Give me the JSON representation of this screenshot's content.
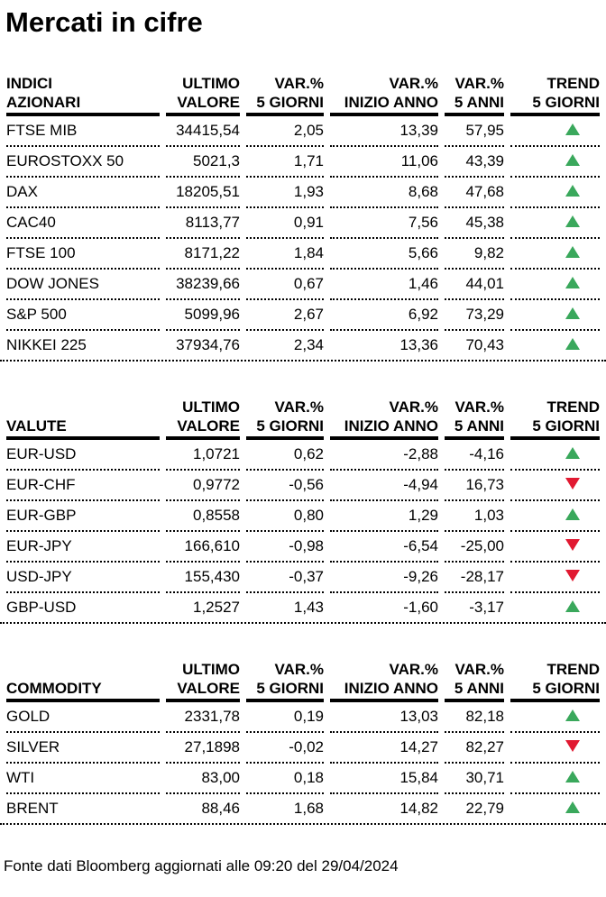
{
  "title": "Mercati in cifre",
  "footer": "Fonte dati Bloomberg aggiornati alle 09:20 del 29/04/2024",
  "colors": {
    "trend_up": "#3aa85c",
    "trend_down": "#e11931"
  },
  "columns": {
    "ultimo": [
      "ULTIMO",
      "VALORE"
    ],
    "var_5_giorni": [
      "VAR.%",
      "5 GIORNI"
    ],
    "var_inizio_anno": [
      "VAR.%",
      "INIZIO ANNO"
    ],
    "var_5_anni": [
      "VAR.%",
      "5 ANNI"
    ],
    "trend": [
      "TREND",
      "5 GIORNI"
    ]
  },
  "tables": [
    {
      "id": "indici-azionari",
      "label_lines": [
        "INDICI",
        "AZIONARI"
      ],
      "rows": [
        {
          "name": "FTSE MIB",
          "ultimo": "34415,54",
          "var_5_giorni": "2,05",
          "var_inizio_anno": "13,39",
          "var_5_anni": "57,95",
          "trend": "up"
        },
        {
          "name": "EUROSTOXX 50",
          "ultimo": "5021,3",
          "var_5_giorni": "1,71",
          "var_inizio_anno": "11,06",
          "var_5_anni": "43,39",
          "trend": "up"
        },
        {
          "name": "DAX",
          "ultimo": "18205,51",
          "var_5_giorni": "1,93",
          "var_inizio_anno": "8,68",
          "var_5_anni": "47,68",
          "trend": "up"
        },
        {
          "name": "CAC40",
          "ultimo": "8113,77",
          "var_5_giorni": "0,91",
          "var_inizio_anno": "7,56",
          "var_5_anni": "45,38",
          "trend": "up"
        },
        {
          "name": "FTSE 100",
          "ultimo": "8171,22",
          "var_5_giorni": "1,84",
          "var_inizio_anno": "5,66",
          "var_5_anni": "9,82",
          "trend": "up"
        },
        {
          "name": "DOW JONES",
          "ultimo": "38239,66",
          "var_5_giorni": "0,67",
          "var_inizio_anno": "1,46",
          "var_5_anni": "44,01",
          "trend": "up"
        },
        {
          "name": "S&P 500",
          "ultimo": "5099,96",
          "var_5_giorni": "2,67",
          "var_inizio_anno": "6,92",
          "var_5_anni": "73,29",
          "trend": "up"
        },
        {
          "name": "NIKKEI 225",
          "ultimo": "37934,76",
          "var_5_giorni": "2,34",
          "var_inizio_anno": "13,36",
          "var_5_anni": "70,43",
          "trend": "up"
        }
      ]
    },
    {
      "id": "valute",
      "label_lines": [
        "VALUTE"
      ],
      "rows": [
        {
          "name": "EUR-USD",
          "ultimo": "1,0721",
          "var_5_giorni": "0,62",
          "var_inizio_anno": "-2,88",
          "var_5_anni": "-4,16",
          "trend": "up"
        },
        {
          "name": "EUR-CHF",
          "ultimo": "0,9772",
          "var_5_giorni": "-0,56",
          "var_inizio_anno": "-4,94",
          "var_5_anni": "16,73",
          "trend": "down"
        },
        {
          "name": "EUR-GBP",
          "ultimo": "0,8558",
          "var_5_giorni": "0,80",
          "var_inizio_anno": "1,29",
          "var_5_anni": "1,03",
          "trend": "up"
        },
        {
          "name": "EUR-JPY",
          "ultimo": "166,610",
          "var_5_giorni": "-0,98",
          "var_inizio_anno": "-6,54",
          "var_5_anni": "-25,00",
          "trend": "down"
        },
        {
          "name": "USD-JPY",
          "ultimo": "155,430",
          "var_5_giorni": "-0,37",
          "var_inizio_anno": "-9,26",
          "var_5_anni": "-28,17",
          "trend": "down"
        },
        {
          "name": "GBP-USD",
          "ultimo": "1,2527",
          "var_5_giorni": "1,43",
          "var_inizio_anno": "-1,60",
          "var_5_anni": "-3,17",
          "trend": "up"
        }
      ]
    },
    {
      "id": "commodity",
      "label_lines": [
        "COMMODITY"
      ],
      "rows": [
        {
          "name": "GOLD",
          "ultimo": "2331,78",
          "var_5_giorni": "0,19",
          "var_inizio_anno": "13,03",
          "var_5_anni": "82,18",
          "trend": "up"
        },
        {
          "name": "SILVER",
          "ultimo": "27,1898",
          "var_5_giorni": "-0,02",
          "var_inizio_anno": "14,27",
          "var_5_anni": "82,27",
          "trend": "down"
        },
        {
          "name": "WTI",
          "ultimo": "83,00",
          "var_5_giorni": "0,18",
          "var_inizio_anno": "15,84",
          "var_5_anni": "30,71",
          "trend": "up"
        },
        {
          "name": "BRENT",
          "ultimo": "88,46",
          "var_5_giorni": "1,68",
          "var_inizio_anno": "14,82",
          "var_5_anni": "22,79",
          "trend": "up"
        }
      ]
    }
  ]
}
